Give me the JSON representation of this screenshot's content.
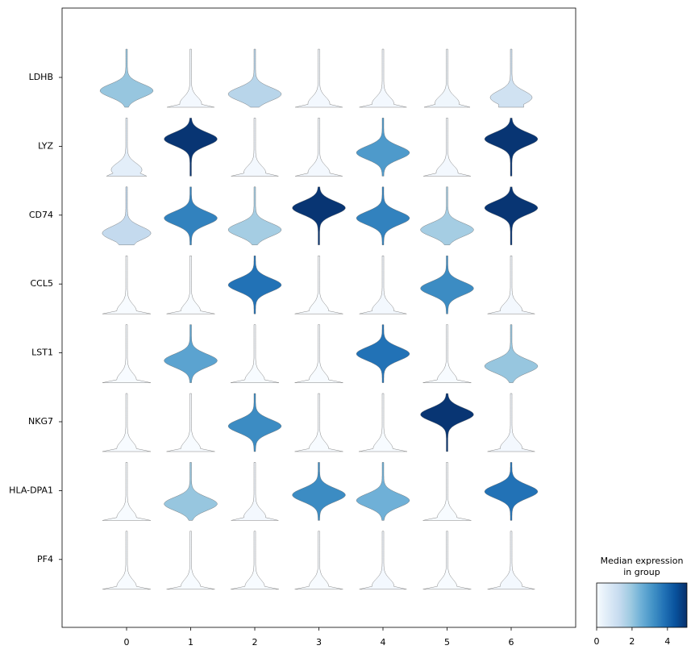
{
  "chart_data": {
    "type": "stacked-violin",
    "categories": [
      "0",
      "1",
      "2",
      "3",
      "4",
      "5",
      "6"
    ],
    "genes": [
      "LDHB",
      "LYZ",
      "CD74",
      "CCL5",
      "LST1",
      "NKG7",
      "HLA-DPA1",
      "PF4"
    ],
    "values": [
      [
        2.0,
        0.1,
        1.5,
        0.1,
        0.1,
        0.2,
        1.0
      ],
      [
        0.5,
        5.0,
        0.1,
        0.1,
        3.0,
        0.1,
        5.0
      ],
      [
        1.3,
        3.5,
        1.8,
        5.0,
        3.5,
        1.8,
        5.0
      ],
      [
        0,
        0,
        3.8,
        0,
        0.1,
        3.3,
        0.1
      ],
      [
        0,
        2.8,
        0,
        0,
        3.8,
        0,
        2.0
      ],
      [
        0,
        0,
        3.3,
        0,
        0,
        5.0,
        0.1
      ],
      [
        0,
        2.0,
        0.1,
        3.3,
        2.5,
        0,
        3.8
      ],
      [
        0,
        0,
        0,
        0,
        0.1,
        0,
        0.1
      ]
    ],
    "colorbar_title": "Median expression in group",
    "clim": [
      0,
      5.1
    ],
    "cticks": [
      0,
      2,
      4
    ],
    "colormap": [
      "#f7fbff",
      "#deebf7",
      "#c6dbef",
      "#9ecae1",
      "#6baed6",
      "#4292c6",
      "#2171b5",
      "#08519c",
      "#08306b"
    ]
  }
}
